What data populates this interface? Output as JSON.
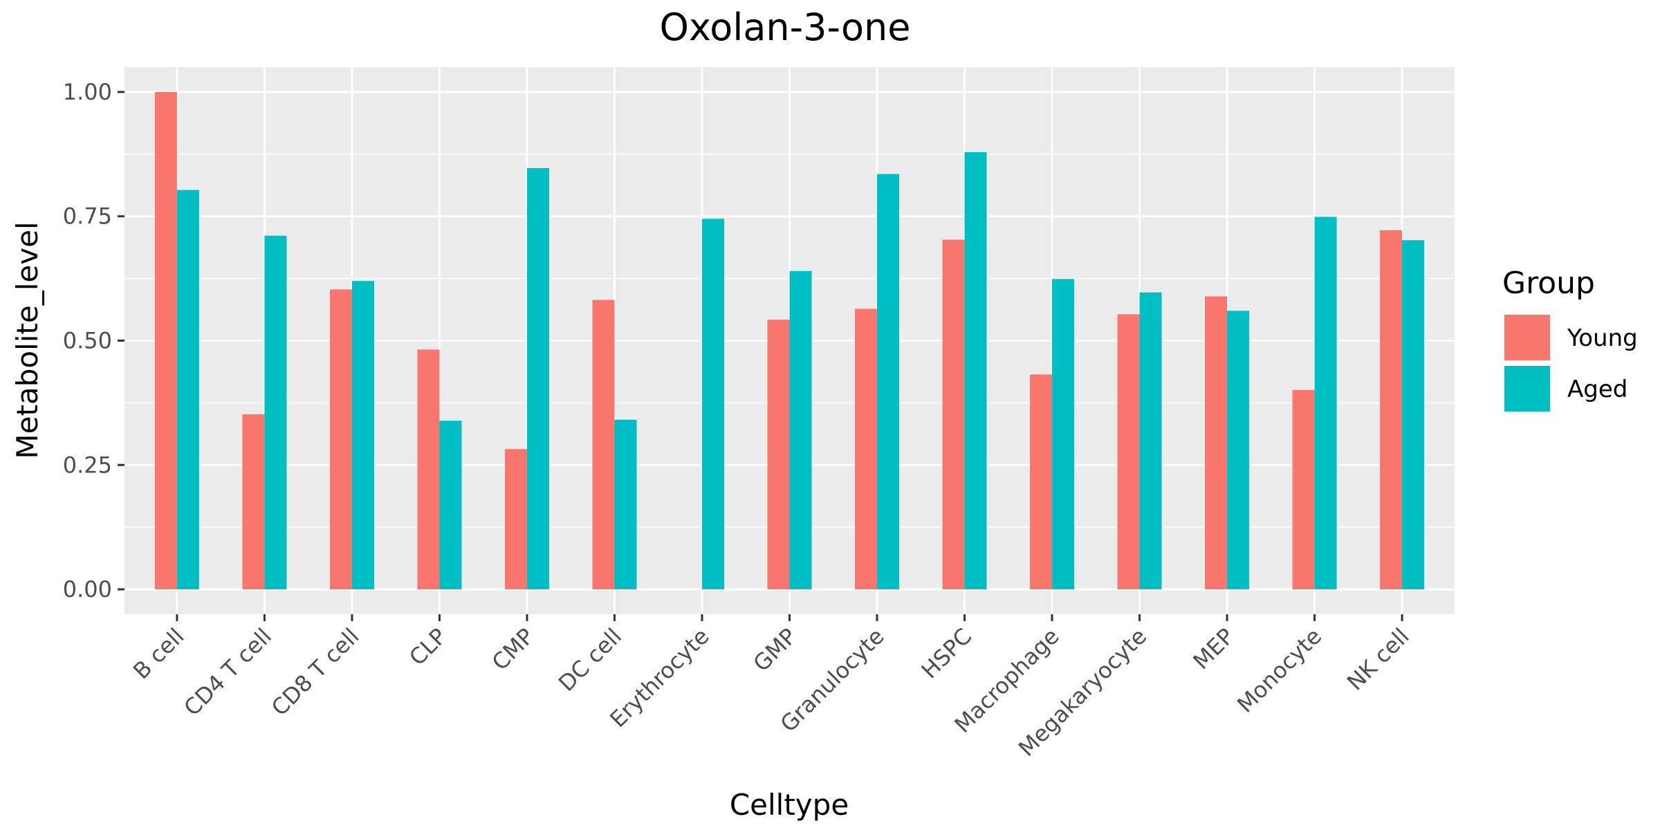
{
  "chart_data": {
    "type": "bar",
    "title": "Oxolan-3-one",
    "xlabel": "Celltype",
    "ylabel": "Metabolite_level",
    "ylim": [
      -0.05,
      1.05
    ],
    "yticks": [
      0.0,
      0.25,
      0.5,
      0.75,
      1.0
    ],
    "ytick_labels": [
      "0.00",
      "0.25",
      "0.50",
      "0.75",
      "1.00"
    ],
    "grid": true,
    "legend_position": "right",
    "legend_title": "Group",
    "categories": [
      "B cell",
      "CD4 T cell",
      "CD8 T cell",
      "CLP",
      "CMP",
      "DC cell",
      "Erythrocyte",
      "GMP",
      "Granulocyte",
      "HSPC",
      "Macrophage",
      "Megakaryocyte",
      "MEP",
      "Monocyte",
      "NK cell"
    ],
    "series": [
      {
        "name": "Young",
        "color": "#F8766D",
        "values": [
          1.0,
          0.352,
          0.603,
          0.482,
          0.282,
          0.582,
          0.0,
          0.542,
          0.564,
          0.703,
          0.432,
          0.553,
          0.589,
          0.401,
          0.722
        ]
      },
      {
        "name": "Aged",
        "color": "#00BFC4",
        "values": [
          0.803,
          0.711,
          0.62,
          0.339,
          0.847,
          0.341,
          0.745,
          0.64,
          0.835,
          0.879,
          0.624,
          0.597,
          0.56,
          0.749,
          0.702
        ]
      }
    ]
  }
}
